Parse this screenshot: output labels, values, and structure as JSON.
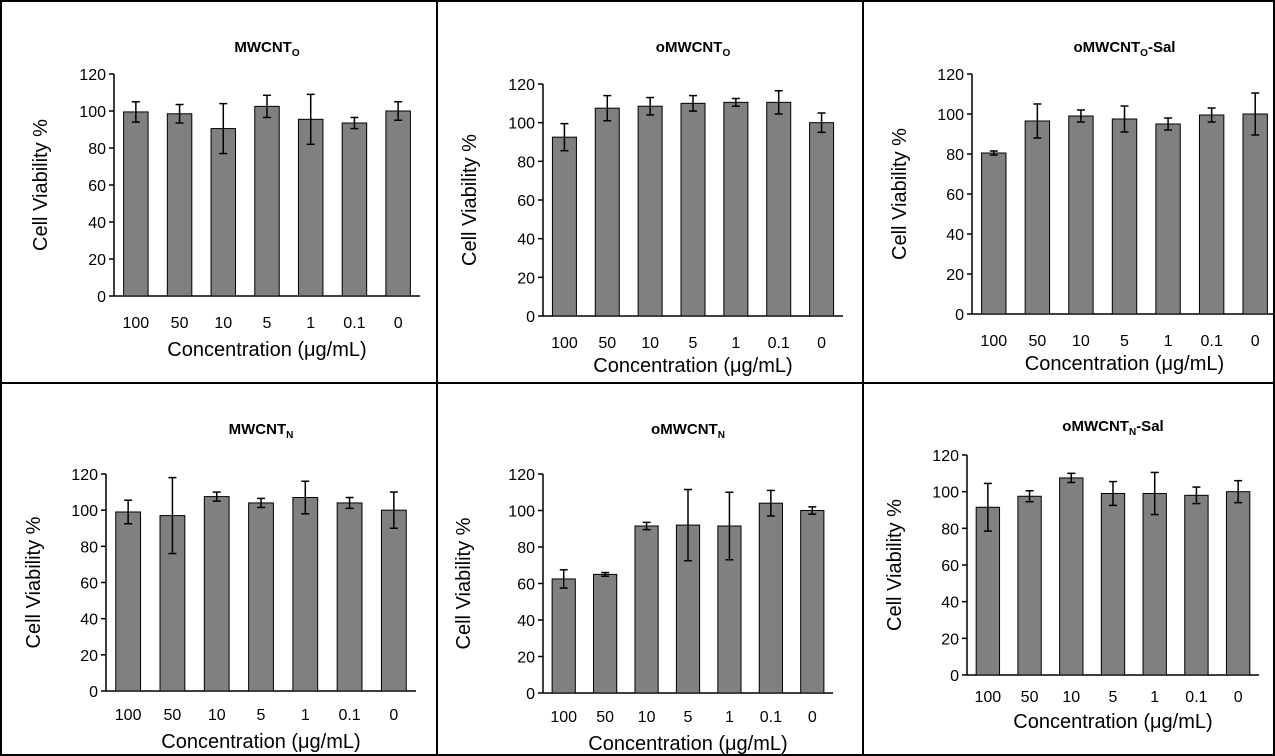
{
  "chart_data": [
    {
      "type": "bar",
      "title": "MWCNT",
      "title_subscript": "O",
      "title_suffix": "",
      "xlabel": "Concentration (μg/mL)",
      "ylabel": "Cell Viability %",
      "categories": [
        "100",
        "50",
        "10",
        "5",
        "1",
        "0.1",
        "0"
      ],
      "values": [
        99.5,
        98.5,
        90.5,
        102.5,
        95.5,
        93.5,
        100
      ],
      "errors": [
        5.5,
        5.0,
        13.5,
        6.0,
        13.5,
        3.0,
        5.0
      ],
      "ylim": [
        0,
        120
      ],
      "yticks": [
        "0",
        "20",
        "40",
        "60",
        "80",
        "100",
        "120"
      ],
      "bar_color": "#808080",
      "grid": false
    },
    {
      "type": "bar",
      "title": "oMWCNT",
      "title_subscript": "O",
      "title_suffix": "",
      "xlabel": "Concentration (μg/mL)",
      "ylabel": "Cell Viability %",
      "categories": [
        "100",
        "50",
        "10",
        "5",
        "1",
        "0.1",
        "0"
      ],
      "values": [
        92.5,
        107.5,
        108.5,
        110,
        110.5,
        110.5,
        100
      ],
      "errors": [
        7.0,
        6.5,
        4.5,
        4.0,
        2.0,
        6.0,
        5.0
      ],
      "ylim": [
        0,
        120
      ],
      "yticks": [
        "0",
        "20",
        "40",
        "60",
        "80",
        "100",
        "120"
      ],
      "bar_color": "#808080",
      "grid": false
    },
    {
      "type": "bar",
      "title": "oMWCNT",
      "title_subscript": "O",
      "title_suffix": "-Sal",
      "xlabel": "Concentration (μg/mL)",
      "ylabel": "Cell Viability %",
      "categories": [
        "100",
        "50",
        "10",
        "5",
        "1",
        "0.1",
        "0"
      ],
      "values": [
        80.5,
        96.5,
        99,
        97.5,
        95,
        99.5,
        100
      ],
      "errors": [
        1.0,
        8.5,
        3.0,
        6.5,
        3.0,
        3.5,
        10.5
      ],
      "ylim": [
        0,
        120
      ],
      "yticks": [
        "0",
        "20",
        "40",
        "60",
        "80",
        "100",
        "120"
      ],
      "bar_color": "#808080",
      "grid": false
    },
    {
      "type": "bar",
      "title": "MWCNT",
      "title_subscript": "N",
      "title_suffix": "",
      "xlabel": "Concentration (μg/mL)",
      "ylabel": "Cell Viability %",
      "categories": [
        "100",
        "50",
        "10",
        "5",
        "1",
        "0.1",
        "0"
      ],
      "values": [
        99,
        97,
        107.5,
        104,
        107,
        104,
        100
      ],
      "errors": [
        6.5,
        21.0,
        2.5,
        2.5,
        9.0,
        3.0,
        10.0
      ],
      "ylim": [
        0,
        120
      ],
      "yticks": [
        "0",
        "20",
        "40",
        "60",
        "80",
        "100",
        "120"
      ],
      "bar_color": "#808080",
      "grid": false
    },
    {
      "type": "bar",
      "title": "oMWCNT",
      "title_subscript": "N",
      "title_suffix": "",
      "xlabel": "Concentration (μg/mL)",
      "ylabel": "Cell Viability %",
      "categories": [
        "100",
        "50",
        "10",
        "5",
        "1",
        "0.1",
        "0"
      ],
      "values": [
        62.5,
        65,
        91.5,
        92,
        91.5,
        104,
        100
      ],
      "errors": [
        5.0,
        1.0,
        2.0,
        19.5,
        18.5,
        7.0,
        2.0
      ],
      "ylim": [
        0,
        120
      ],
      "yticks": [
        "0",
        "20",
        "40",
        "60",
        "80",
        "100",
        "120"
      ],
      "bar_color": "#808080",
      "grid": false
    },
    {
      "type": "bar",
      "title": "oMWCNT",
      "title_subscript": "N",
      "title_suffix": "-Sal",
      "xlabel": "Concentration (μg/mL)",
      "ylabel": "Cell Viability %",
      "categories": [
        "100",
        "50",
        "10",
        "5",
        "1",
        "0.1",
        "0"
      ],
      "values": [
        91.5,
        97.5,
        107.5,
        99,
        99,
        98,
        100
      ],
      "errors": [
        13.0,
        3.0,
        2.5,
        6.5,
        11.5,
        4.5,
        6.0
      ],
      "ylim": [
        0,
        120
      ],
      "yticks": [
        "0",
        "20",
        "40",
        "60",
        "80",
        "100",
        "120"
      ],
      "bar_color": "#808080",
      "grid": false
    }
  ]
}
